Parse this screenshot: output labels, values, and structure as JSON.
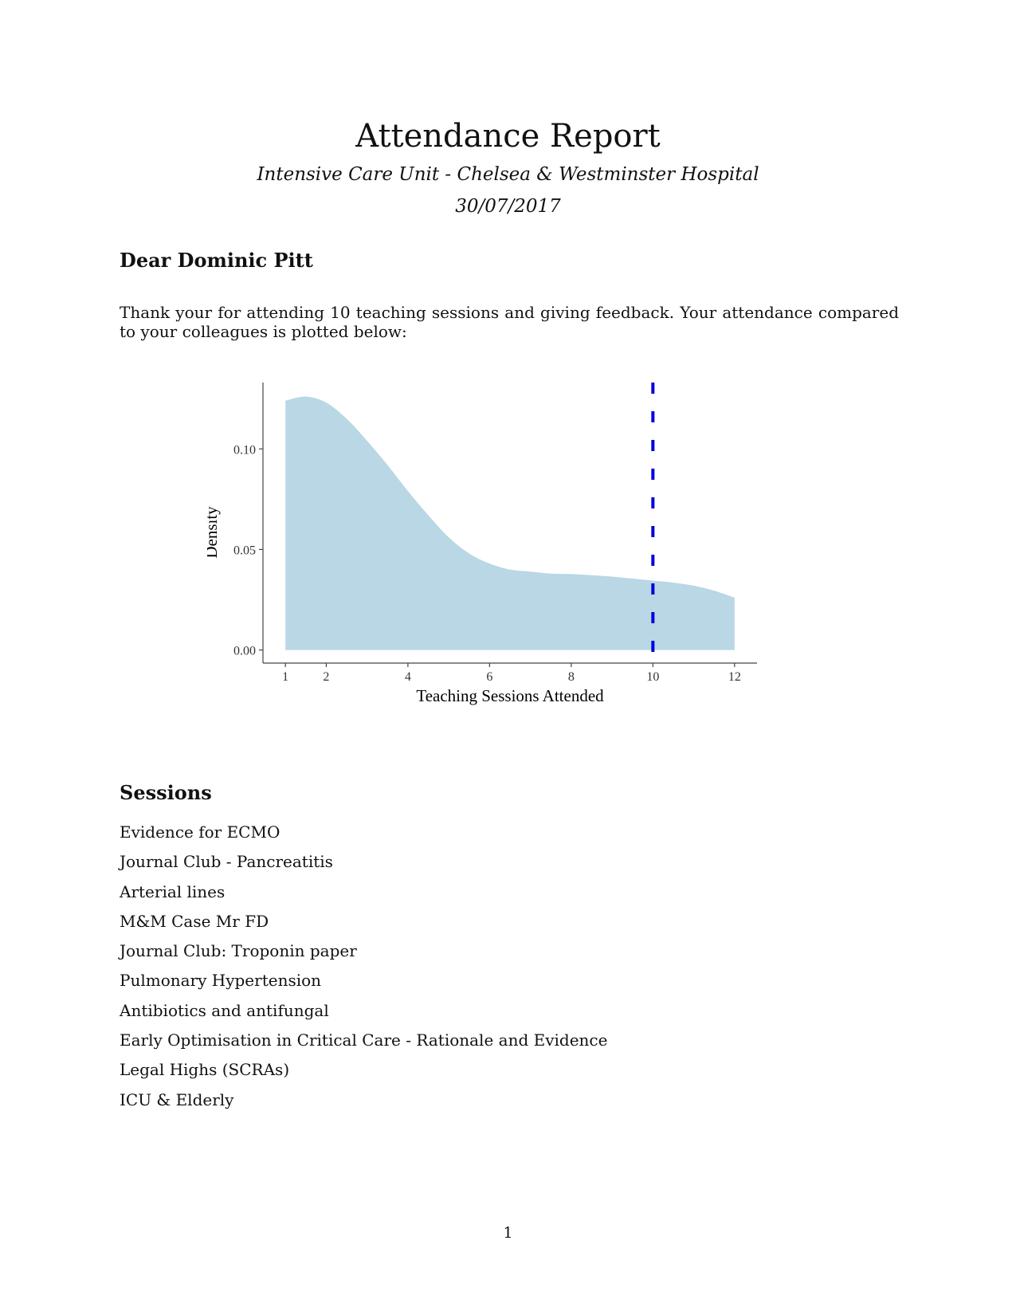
{
  "report": {
    "title": "Attendance Report",
    "subtitle": "Intensive Care Unit - Chelsea & Westminster Hospital",
    "date": "30/07/2017",
    "greeting": "Dear Dominic Pitt",
    "paragraph": "Thank your for attending 10 teaching sessions and giving feedback.  Your attendance compared to your colleagues is plotted below:",
    "sessions_heading": "Sessions",
    "page_number": "1"
  },
  "sessions": [
    "Evidence for ECMO",
    "Journal Club - Pancreatitis",
    "Arterial lines",
    "M&M Case Mr FD",
    "Journal Club: Troponin paper",
    "Pulmonary Hypertension",
    "Antibiotics and antifungal",
    "Early Optimisation in Critical Care - Rationale and Evidence",
    "Legal Highs (SCRAs)",
    "ICU & Elderly"
  ],
  "chart_data": {
    "type": "area",
    "xlabel": "Teaching Sessions Attended",
    "ylabel": "Density",
    "x_ticks": [
      1,
      2,
      4,
      6,
      8,
      10,
      12
    ],
    "y_ticks": [
      0.0,
      0.05,
      0.1
    ],
    "y_tick_labels": [
      "0.00",
      "0.05",
      "0.10"
    ],
    "xlim": [
      0.45,
      12.55
    ],
    "ylim": [
      -0.0065,
      0.133
    ],
    "fill_color": "#b9d7e5",
    "marker_color": "#0000dd",
    "series": [
      {
        "x": [
          1,
          1.5,
          2,
          2.5,
          3,
          3.5,
          4,
          4.5,
          5,
          5.5,
          6,
          6.5,
          7,
          7.5,
          8,
          8.5,
          9,
          9.5,
          10,
          10.5,
          11,
          11.5,
          12
        ],
        "values": [
          0.124,
          0.126,
          0.123,
          0.115,
          0.104,
          0.092,
          0.079,
          0.067,
          0.056,
          0.048,
          0.043,
          0.04,
          0.039,
          0.038,
          0.0378,
          0.0372,
          0.0365,
          0.0355,
          0.0345,
          0.0335,
          0.032,
          0.0295,
          0.026
        ]
      }
    ],
    "vline": {
      "x": 10,
      "style": "dashed"
    }
  }
}
